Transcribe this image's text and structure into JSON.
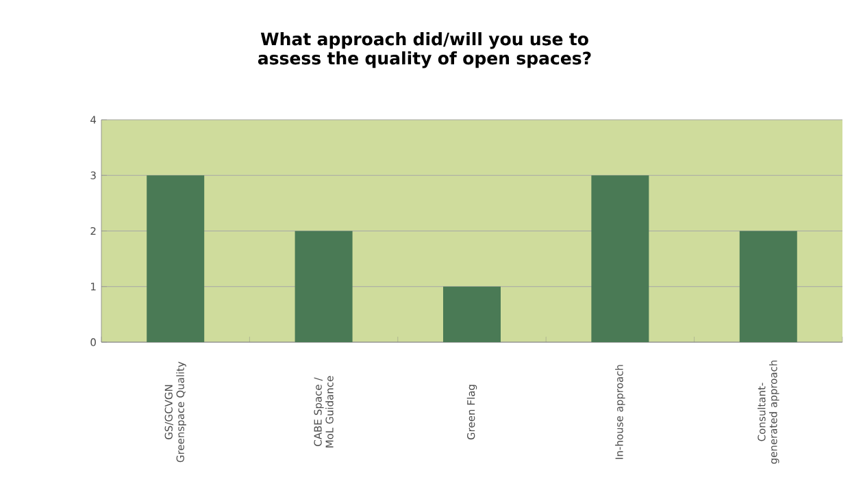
{
  "chart_data": {
    "type": "bar",
    "title": "What approach did/will you use to assess the quality of open spaces?",
    "categories": [
      "GS/GCVGN Greenspace Quality",
      "CABE Space / MoL Guidance",
      "Green Flag",
      "In-house approach",
      "Consultant-generated approach"
    ],
    "values": [
      3,
      2,
      1,
      3,
      2
    ],
    "color": "#4a7a55",
    "ylim": [
      0,
      4
    ],
    "yticks": [
      0,
      1,
      2,
      3,
      4
    ],
    "grid": "y"
  }
}
